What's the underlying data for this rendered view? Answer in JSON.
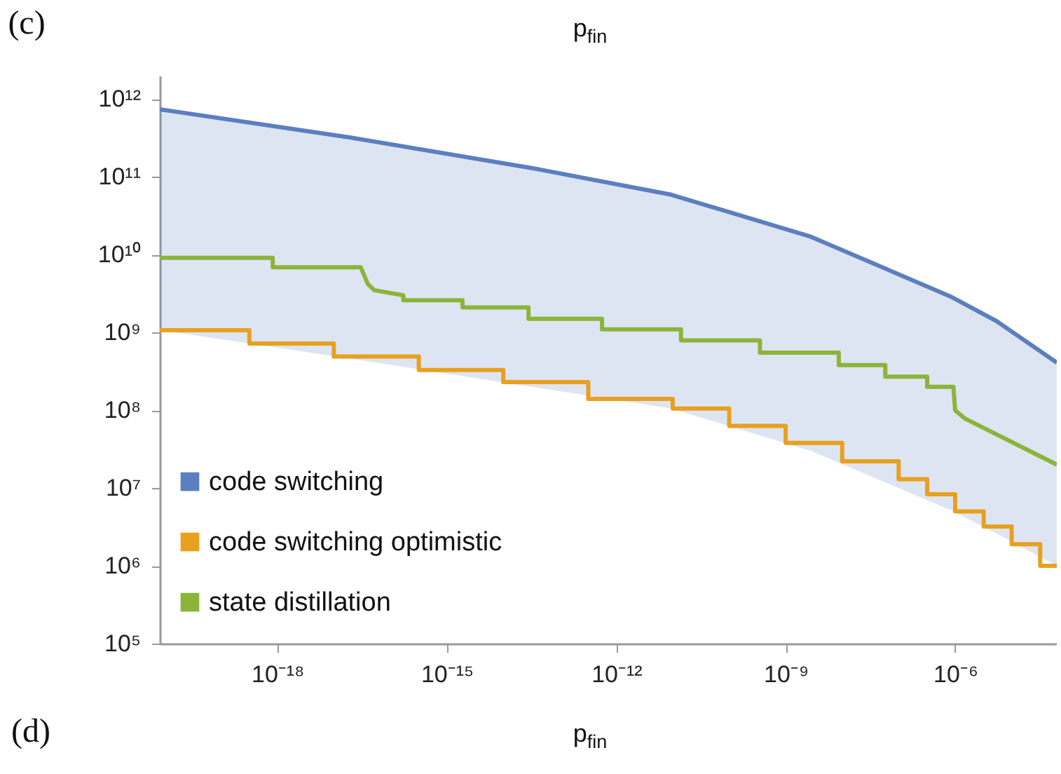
{
  "chart_data": {
    "type": "line",
    "title": "p$_{fin}$",
    "annotations": [
      "(c)",
      "(d)",
      "p$_{fin}$"
    ],
    "log": "xy",
    "grid": false,
    "legend": "bottom left",
    "xlim": [
      8.3e-21,
      6.3e-05
    ],
    "ylim": [
      100000,
      2000000000000.0
    ],
    "xticks": [
      {
        "value": 1e-18,
        "label": "10⁻¹⁸"
      },
      {
        "value": 1e-15,
        "label": "10⁻¹⁵"
      },
      {
        "value": 1e-12,
        "label": "10⁻¹²"
      },
      {
        "value": 1e-09,
        "label": "10⁻⁹"
      },
      {
        "value": 1e-06,
        "label": "10⁻⁶"
      }
    ],
    "yticks": [
      {
        "value": 100000,
        "label": "10⁵"
      },
      {
        "value": 1000000,
        "label": "10⁶"
      },
      {
        "value": 10000000,
        "label": "10⁷"
      },
      {
        "value": 100000000,
        "label": "10⁸"
      },
      {
        "value": 1000000000,
        "label": "10⁹"
      },
      {
        "value": 10000000000,
        "label": "10¹⁰"
      },
      {
        "value": 100000000000,
        "label": "10¹¹"
      },
      {
        "value": 1000000000000,
        "label": "10¹²"
      }
    ],
    "series": [
      {
        "name": "code switching",
        "type": "line",
        "color": "#5b7fbf",
        "x": [
          8.3e-21,
          2e-17,
          3.2e-14,
          9.5e-12,
          2.8e-09,
          8.3e-07,
          5.4e-06,
          6.3e-05
        ],
        "values": [
          740000000000.0,
          320000000000.0,
          130000000000.0,
          59000000000.0,
          17000000000.0,
          2900000000.0,
          1400000000.0,
          410000000.0
        ],
        "lower": [
          1070000000.0,
          460000000.0,
          200000000.0,
          105000000.0,
          30000000.0,
          5200000.0,
          2600000.0,
          1000000.0
        ],
        "upper": [
          740000000000.0,
          320000000000.0,
          130000000000.0,
          59000000000.0,
          17000000000.0,
          2900000000.0,
          1400000000.0,
          410000000.0
        ]
      },
      {
        "name": "code switching optimistic",
        "type": "step",
        "color": "#e8a020",
        "x": [
          8.3e-21,
          3.2e-19,
          1e-17,
          3.2e-16,
          1e-14,
          3.2e-13,
          1e-11,
          1e-10,
          1e-09,
          1e-08,
          1e-07,
          3.2e-07,
          1e-06,
          3.2e-06,
          1e-05,
          3.2e-05,
          6.3e-05
        ],
        "values": [
          1070000000.0,
          720000000.0,
          490000000.0,
          330000000.0,
          230000000.0,
          140000000.0,
          105000000.0,
          63000000.0,
          38000000.0,
          22000000.0,
          13000000.0,
          8300000.0,
          5000000.0,
          3200000.0,
          1900000.0,
          1000000.0,
          1000000.0
        ]
      },
      {
        "name": "state distillation",
        "type": "line",
        "color": "#8cb43a",
        "x": [
          8.3e-21,
          8.3e-19,
          8.3e-19,
          3e-17,
          4e-17,
          5.2e-17,
          1.7e-16,
          1.7e-16,
          1.9e-15,
          1.9e-15,
          2.8e-14,
          2.8e-14,
          5.6e-13,
          5.6e-13,
          1.4e-11,
          1.4e-11,
          3.5e-10,
          3.5e-10,
          8.7e-09,
          8.7e-09,
          5.8e-08,
          5.8e-08,
          3.2e-07,
          3.2e-07,
          9.3e-07,
          1e-06,
          1.5e-06,
          6.3e-05
        ],
        "values": [
          9100000000.0,
          9100000000.0,
          6900000000.0,
          6900000000.0,
          4200000000.0,
          3500000000.0,
          3000000000.0,
          2600000000.0,
          2600000000.0,
          2100000000.0,
          2100000000.0,
          1500000000.0,
          1500000000.0,
          1100000000.0,
          1100000000.0,
          790000000.0,
          790000000.0,
          550000000.0,
          550000000.0,
          380000000.0,
          380000000.0,
          270000000.0,
          270000000.0,
          200000000.0,
          200000000.0,
          100000000.0,
          78000000.0,
          20000000.0
        ]
      }
    ]
  }
}
